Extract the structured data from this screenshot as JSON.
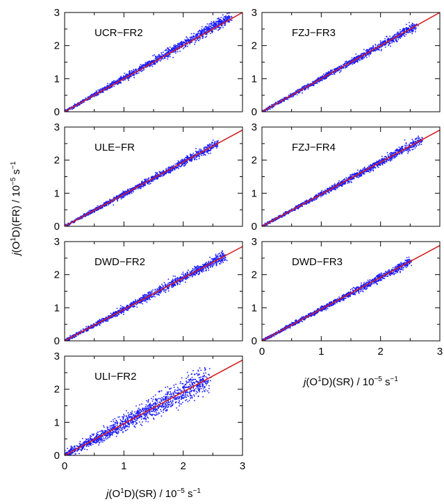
{
  "figure": {
    "ylabel": "j(O¹D)(FR) / 10⁻⁵ s⁻¹",
    "xlabel_left": "j(O¹D)(SR) / 10⁻⁵ s⁻¹",
    "xlabel_right": "j(O¹D)(SR) / 10⁻⁵ s⁻¹"
  },
  "colors": {
    "points": "#1a1aff",
    "fit": "#d42020",
    "axis": "#000000"
  },
  "chart_data": [
    {
      "type": "scatter",
      "panel_label": "UCR−FR2",
      "xlim": [
        0,
        3
      ],
      "ylim": [
        0,
        3
      ],
      "xticks": [
        "0",
        "1",
        "2",
        "3"
      ],
      "yticks": [
        "0",
        "1",
        "2",
        "3"
      ],
      "fit_line": {
        "slope": 1.02,
        "intercept": 0
      },
      "point_range": [
        0,
        2.8
      ],
      "scatter_spread": 0.05
    },
    {
      "type": "scatter",
      "panel_label": "FZJ−FR3",
      "xlim": [
        0,
        3
      ],
      "ylim": [
        0,
        3
      ],
      "xticks": [
        "0",
        "1",
        "2",
        "3"
      ],
      "yticks": [
        "0",
        "1",
        "2",
        "3"
      ],
      "fit_line": {
        "slope": 1.0,
        "intercept": 0
      },
      "point_range": [
        0,
        2.6
      ],
      "scatter_spread": 0.04
    },
    {
      "type": "scatter",
      "panel_label": "ULE−FR",
      "xlim": [
        0,
        3
      ],
      "ylim": [
        0,
        3
      ],
      "xticks": [
        "0",
        "1",
        "2",
        "3"
      ],
      "yticks": [
        "0",
        "1",
        "2",
        "3"
      ],
      "fit_line": {
        "slope": 0.97,
        "intercept": 0
      },
      "point_range": [
        0,
        2.6
      ],
      "scatter_spread": 0.04
    },
    {
      "type": "scatter",
      "panel_label": "FZJ−FR4",
      "xlim": [
        0,
        3
      ],
      "ylim": [
        0,
        3
      ],
      "xticks": [
        "0",
        "1",
        "2",
        "3"
      ],
      "yticks": [
        "0",
        "1",
        "2",
        "3"
      ],
      "fit_line": {
        "slope": 0.97,
        "intercept": 0
      },
      "point_range": [
        0,
        2.7
      ],
      "scatter_spread": 0.04
    },
    {
      "type": "scatter",
      "panel_label": "DWD−FR2",
      "xlim": [
        0,
        3
      ],
      "ylim": [
        0,
        3
      ],
      "xticks": [
        "0",
        "1",
        "2",
        "3"
      ],
      "yticks": [
        "0",
        "1",
        "2",
        "3"
      ],
      "fit_line": {
        "slope": 0.95,
        "intercept": 0
      },
      "point_range": [
        0,
        2.7
      ],
      "scatter_spread": 0.05
    },
    {
      "type": "scatter",
      "panel_label": "DWD−FR3",
      "xlim": [
        0,
        3
      ],
      "ylim": [
        0,
        3
      ],
      "xticks": [
        "0",
        "1",
        "2",
        "3"
      ],
      "yticks": [
        "0",
        "1",
        "2",
        "3"
      ],
      "fit_line": {
        "slope": 0.96,
        "intercept": 0
      },
      "point_range": [
        0,
        2.5
      ],
      "scatter_spread": 0.04
    },
    {
      "type": "scatter",
      "panel_label": "ULI−FR2",
      "xlim": [
        0,
        3
      ],
      "ylim": [
        0,
        3
      ],
      "xticks": [
        "0",
        "1",
        "2",
        "3"
      ],
      "yticks": [
        "0",
        "1",
        "2",
        "3"
      ],
      "fit_line": {
        "slope": 0.96,
        "intercept": 0
      },
      "point_range": [
        0,
        2.4
      ],
      "scatter_spread": 0.13
    }
  ]
}
